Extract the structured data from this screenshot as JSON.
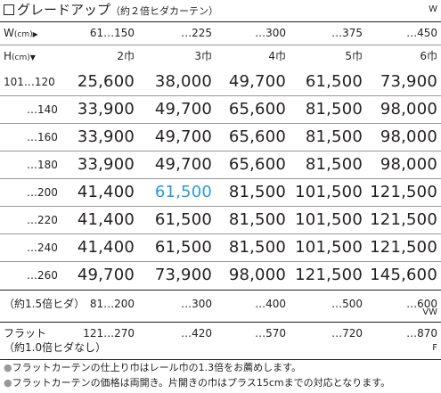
{
  "title": {
    "main": "グレードアップ",
    "note": "（約２倍ヒダカーテン）"
  },
  "codes": {
    "w": "W",
    "vw": "VW",
    "f": "F"
  },
  "header": {
    "width_label": "W",
    "width_unit": "(cm)",
    "width_marker": "▶",
    "height_label": "H",
    "height_unit": "(cm)",
    "height_marker": "▼",
    "width_ranges": [
      "61…150",
      "…225",
      "…300",
      "…375",
      "…450"
    ],
    "panel_widths": [
      "2巾",
      "3巾",
      "4巾",
      "5巾",
      "6巾"
    ]
  },
  "price_rows": [
    {
      "height": "101…120",
      "prices": [
        "25,600",
        "38,000",
        "49,700",
        "61,500",
        "73,900"
      ]
    },
    {
      "height": "…140",
      "prices": [
        "33,900",
        "49,700",
        "65,600",
        "81,500",
        "98,000"
      ]
    },
    {
      "height": "…160",
      "prices": [
        "33,900",
        "49,700",
        "65,600",
        "81,500",
        "98,000"
      ]
    },
    {
      "height": "…180",
      "prices": [
        "33,900",
        "49,700",
        "65,600",
        "81,500",
        "98,000"
      ]
    },
    {
      "height": "…200",
      "prices": [
        "41,400",
        "61,500",
        "81,500",
        "101,500",
        "121,500"
      ]
    },
    {
      "height": "…220",
      "prices": [
        "41,400",
        "61,500",
        "81,500",
        "101,500",
        "121,500"
      ]
    },
    {
      "height": "…240",
      "prices": [
        "41,400",
        "61,500",
        "81,500",
        "101,500",
        "121,500"
      ]
    },
    {
      "height": "…260",
      "prices": [
        "49,700",
        "73,900",
        "98,000",
        "121,500",
        "145,600"
      ]
    }
  ],
  "highlight": {
    "color": "#2b9bd8"
  },
  "pleat_15": {
    "label": "（約1.5倍ヒダ）",
    "ranges": [
      "81…200",
      "…300",
      "…400",
      "…500",
      "…600"
    ]
  },
  "flat": {
    "label": "フラット",
    "sub_label": "（約1.0倍ヒダなし）",
    "ranges": [
      "121…270",
      "…420",
      "…570",
      "…720",
      "…870"
    ]
  },
  "notes": [
    "フラットカーテンの仕上り巾はレール巾の1.3倍をお薦めします。",
    "フラットカーテンの価格は両開き。片開きの巾はプラス15cmまでの対応となります。"
  ],
  "note_bullet": "●"
}
